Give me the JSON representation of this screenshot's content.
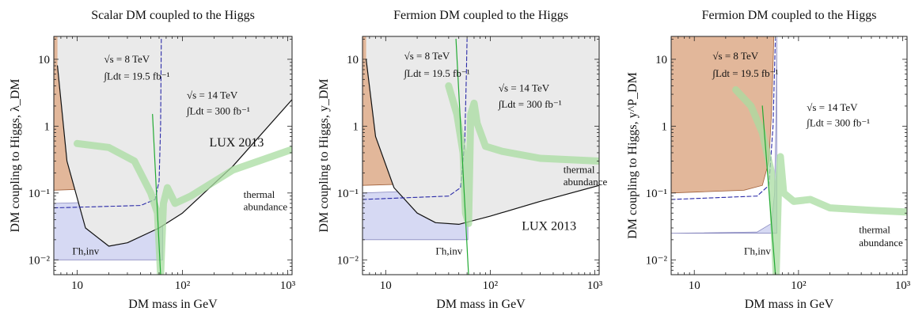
{
  "chart_data": [
    {
      "type": "area",
      "title": "Scalar DM coupled to the Higgs",
      "xlabel": "DM mass in GeV",
      "ylabel": "DM coupling to Higgs, λ_DM",
      "xscale": "log",
      "yscale": "log",
      "xlim": [
        6,
        1100
      ],
      "ylim": [
        0.006,
        22
      ],
      "grid": false,
      "x_ticks": [
        {
          "v": 10,
          "t": "10"
        },
        {
          "v": 100,
          "t": "10²"
        },
        {
          "v": 1000,
          "t": "10³"
        }
      ],
      "y_ticks": [
        {
          "v": 0.01,
          "t": "10⁻²"
        },
        {
          "v": 0.1,
          "t": "10⁻¹"
        },
        {
          "v": 1,
          "t": "1"
        },
        {
          "v": 10,
          "t": "10"
        }
      ],
      "regions": [
        {
          "name": "LHC 8 TeV excluded",
          "color": "#e2b79a",
          "boundary": [
            [
              6,
              0.11
            ],
            [
              30,
              0.12
            ],
            [
              45,
              0.13
            ],
            [
              55,
              0.16
            ],
            [
              58,
              0.6
            ],
            [
              60,
              5
            ],
            [
              61,
              22
            ]
          ]
        },
        {
          "name": "Γh,inv excluded",
          "color": "#d6d9f3",
          "boundary": [
            [
              6,
              0.07
            ],
            [
              30,
              0.075
            ],
            [
              50,
              0.085
            ],
            [
              58,
              0.15
            ],
            [
              62,
              0.5
            ],
            [
              65,
              22
            ]
          ],
          "lower": 0.01
        },
        {
          "name": "LUX 2013 excluded",
          "color": "#eaeaea",
          "curve": [
            [
              6.5,
              8
            ],
            [
              8,
              0.3
            ],
            [
              12,
              0.03
            ],
            [
              20,
              0.016
            ],
            [
              30,
              0.018
            ],
            [
              60,
              0.03
            ],
            [
              100,
              0.05
            ],
            [
              300,
              0.25
            ],
            [
              1100,
              2.5
            ]
          ]
        }
      ],
      "series": [
        {
          "name": "LUX 2013",
          "style": "solid",
          "color": "#111111",
          "points": [
            [
              6.5,
              8
            ],
            [
              8,
              0.3
            ],
            [
              12,
              0.03
            ],
            [
              20,
              0.016
            ],
            [
              30,
              0.018
            ],
            [
              60,
              0.03
            ],
            [
              100,
              0.05
            ],
            [
              300,
              0.25
            ],
            [
              1100,
              2.5
            ]
          ]
        },
        {
          "name": "√s = 14 TeV",
          "style": "dashed",
          "color": "#2a2aa8",
          "points": [
            [
              6,
              0.06
            ],
            [
              40,
              0.065
            ],
            [
              55,
              0.08
            ],
            [
              60,
              0.15
            ],
            [
              62,
              1
            ],
            [
              63,
              20
            ]
          ]
        },
        {
          "name": "thermal abundance",
          "style": "thick",
          "color": "#a8dca0",
          "points": [
            [
              10,
              0.55
            ],
            [
              20,
              0.48
            ],
            [
              35,
              0.3
            ],
            [
              50,
              0.1
            ],
            [
              58,
              0.05
            ],
            [
              62,
              0.006
            ],
            [
              66,
              0.07
            ],
            [
              72,
              0.12
            ],
            [
              85,
              0.07
            ],
            [
              120,
              0.09
            ],
            [
              300,
              0.22
            ],
            [
              700,
              0.35
            ],
            [
              1100,
              0.45
            ]
          ]
        },
        {
          "name": "Γh,inv",
          "style": "solid",
          "color": "#22aa33",
          "points": [
            [
              52,
              1.5
            ],
            [
              62,
              0.006
            ]
          ]
        }
      ],
      "annotations": [
        {
          "text": "√s = 8 TeV",
          "x": 18,
          "y": 9
        },
        {
          "text": "∫Ldt = 19.5 fb⁻¹",
          "x": 18,
          "y": 5
        },
        {
          "text": "√s = 14 TeV",
          "x": 110,
          "y": 2.6
        },
        {
          "text": "∫Ldt = 300 fb⁻¹",
          "x": 110,
          "y": 1.5
        },
        {
          "text": "LUX 2013",
          "x": 180,
          "y": 0.5
        },
        {
          "text": "thermal",
          "x": 380,
          "y": 0.085
        },
        {
          "text": "abundance",
          "x": 380,
          "y": 0.055
        },
        {
          "text": "Γh,inv",
          "x": 9,
          "y": 0.012
        }
      ]
    },
    {
      "type": "area",
      "title": "Fermion DM coupled to the Higgs",
      "xlabel": "DM mass in GeV",
      "ylabel": "DM coupling to Higgs, y_DM",
      "xscale": "log",
      "yscale": "log",
      "xlim": [
        6,
        1100
      ],
      "ylim": [
        0.006,
        22
      ],
      "grid": false,
      "x_ticks": [
        {
          "v": 10,
          "t": "10"
        },
        {
          "v": 100,
          "t": "10²"
        },
        {
          "v": 1000,
          "t": "10³"
        }
      ],
      "y_ticks": [
        {
          "v": 0.01,
          "t": "10⁻²"
        },
        {
          "v": 0.1,
          "t": "10⁻¹"
        },
        {
          "v": 1,
          "t": "1"
        },
        {
          "v": 10,
          "t": "10"
        }
      ],
      "regions": [
        {
          "name": "LHC 8 TeV excluded",
          "color": "#e2b79a",
          "boundary": [
            [
              6,
              0.13
            ],
            [
              30,
              0.14
            ],
            [
              45,
              0.16
            ],
            [
              52,
              0.3
            ],
            [
              55,
              1
            ],
            [
              57,
              5
            ],
            [
              58,
              22
            ]
          ]
        },
        {
          "name": "Γh,inv excluded",
          "color": "#d6d9f3",
          "boundary": [
            [
              6,
              0.1
            ],
            [
              30,
              0.11
            ],
            [
              50,
              0.14
            ],
            [
              57,
              0.5
            ],
            [
              60,
              5
            ],
            [
              61,
              22
            ]
          ],
          "lower": 0.02
        },
        {
          "name": "LUX 2013 excluded",
          "color": "#eaeaea",
          "curve": [
            [
              6.5,
              10
            ],
            [
              8,
              0.7
            ],
            [
              12,
              0.12
            ],
            [
              20,
              0.05
            ],
            [
              30,
              0.036
            ],
            [
              50,
              0.034
            ],
            [
              100,
              0.045
            ],
            [
              300,
              0.075
            ],
            [
              1100,
              0.13
            ]
          ]
        }
      ],
      "series": [
        {
          "name": "LUX 2013",
          "style": "solid",
          "color": "#111111",
          "points": [
            [
              6.5,
              10
            ],
            [
              8,
              0.7
            ],
            [
              12,
              0.12
            ],
            [
              20,
              0.05
            ],
            [
              30,
              0.036
            ],
            [
              50,
              0.034
            ],
            [
              100,
              0.045
            ],
            [
              300,
              0.075
            ],
            [
              1100,
              0.13
            ]
          ]
        },
        {
          "name": "√s = 14 TeV",
          "style": "dashed",
          "color": "#2a2aa8",
          "points": [
            [
              6,
              0.08
            ],
            [
              40,
              0.09
            ],
            [
              52,
              0.12
            ],
            [
              57,
              0.6
            ],
            [
              59,
              5
            ],
            [
              60,
              20
            ]
          ]
        },
        {
          "name": "thermal abundance",
          "style": "thick",
          "color": "#a8dca0",
          "points": [
            [
              40,
              4
            ],
            [
              48,
              1.5
            ],
            [
              55,
              0.4
            ],
            [
              58,
              0.05
            ],
            [
              62,
              0.035
            ],
            [
              65,
              1.5
            ],
            [
              70,
              2.2
            ],
            [
              75,
              1.1
            ],
            [
              90,
              0.5
            ],
            [
              130,
              0.42
            ],
            [
              300,
              0.33
            ],
            [
              1100,
              0.3
            ]
          ]
        },
        {
          "name": "Γh,inv",
          "style": "solid",
          "color": "#22aa33",
          "points": [
            [
              47,
              20
            ],
            [
              62,
              0.006
            ]
          ]
        }
      ],
      "annotations": [
        {
          "text": "√s = 8 TeV",
          "x": 15,
          "y": 10
        },
        {
          "text": "∫Ldt = 19.5 fb⁻¹",
          "x": 15,
          "y": 5.5
        },
        {
          "text": "√s = 14 TeV",
          "x": 120,
          "y": 3.3
        },
        {
          "text": "∫Ldt = 300 fb⁻¹",
          "x": 120,
          "y": 1.9
        },
        {
          "text": "thermal",
          "x": 500,
          "y": 0.2
        },
        {
          "text": "abundance",
          "x": 500,
          "y": 0.13
        },
        {
          "text": "LUX 2013",
          "x": 200,
          "y": 0.028
        },
        {
          "text": "Γh,inv",
          "x": 30,
          "y": 0.012
        }
      ]
    },
    {
      "type": "area",
      "title": "Fermion DM coupled to the Higgs",
      "xlabel": "DM mass in GeV",
      "ylabel": "DM coupling to Higgs, y^P_DM",
      "xscale": "log",
      "yscale": "log",
      "xlim": [
        6,
        1100
      ],
      "ylim": [
        0.006,
        22
      ],
      "grid": false,
      "x_ticks": [
        {
          "v": 10,
          "t": "10"
        },
        {
          "v": 100,
          "t": "10²"
        },
        {
          "v": 1000,
          "t": "10³"
        }
      ],
      "y_ticks": [
        {
          "v": 0.01,
          "t": "10⁻²"
        },
        {
          "v": 0.1,
          "t": "10⁻¹"
        },
        {
          "v": 1,
          "t": "1"
        },
        {
          "v": 10,
          "t": "10"
        }
      ],
      "regions": [
        {
          "name": "LHC 8 TeV excluded",
          "color": "#e2b79a",
          "boundary": [
            [
              6,
              0.1
            ],
            [
              30,
              0.11
            ],
            [
              45,
              0.13
            ],
            [
              52,
              0.3
            ],
            [
              55,
              1.5
            ],
            [
              57,
              8
            ],
            [
              58,
              22
            ]
          ]
        },
        {
          "name": "Γh,inv excluded",
          "color": "#d6d9f3",
          "boundary": [
            [
              6,
              0.025
            ],
            [
              40,
              0.026
            ],
            [
              55,
              0.035
            ],
            [
              59,
              0.1
            ],
            [
              61,
              2
            ],
            [
              62,
              22
            ]
          ],
          "lower": 0.025
        }
      ],
      "series": [
        {
          "name": "√s = 14 TeV",
          "style": "dashed",
          "color": "#2a2aa8",
          "points": [
            [
              6,
              0.08
            ],
            [
              40,
              0.09
            ],
            [
              52,
              0.13
            ],
            [
              57,
              1
            ],
            [
              59,
              8
            ],
            [
              60,
              20
            ]
          ]
        },
        {
          "name": "thermal abundance",
          "style": "thick",
          "color": "#a8dca0",
          "points": [
            [
              25,
              3.5
            ],
            [
              35,
              2
            ],
            [
              45,
              0.8
            ],
            [
              55,
              0.2
            ],
            [
              59,
              0.02
            ],
            [
              61,
              0.006
            ],
            [
              64,
              0.1
            ],
            [
              67,
              0.35
            ],
            [
              72,
              0.1
            ],
            [
              90,
              0.075
            ],
            [
              130,
              0.08
            ],
            [
              200,
              0.06
            ],
            [
              500,
              0.055
            ],
            [
              1100,
              0.052
            ]
          ]
        },
        {
          "name": "Γh,inv",
          "style": "solid",
          "color": "#22aa33",
          "points": [
            [
              45,
              2
            ],
            [
              60,
              0.006
            ]
          ]
        }
      ],
      "annotations": [
        {
          "text": "√s = 8 TeV",
          "x": 15,
          "y": 10
        },
        {
          "text": "∫Ldt = 19.5 fb⁻¹",
          "x": 15,
          "y": 5.5
        },
        {
          "text": "√s = 14 TeV",
          "x": 120,
          "y": 1.7
        },
        {
          "text": "∫Ldt = 300 fb⁻¹",
          "x": 120,
          "y": 1.0
        },
        {
          "text": "thermal",
          "x": 380,
          "y": 0.025
        },
        {
          "text": "abundance",
          "x": 380,
          "y": 0.016
        },
        {
          "text": "Γh,inv",
          "x": 30,
          "y": 0.012
        }
      ]
    }
  ]
}
